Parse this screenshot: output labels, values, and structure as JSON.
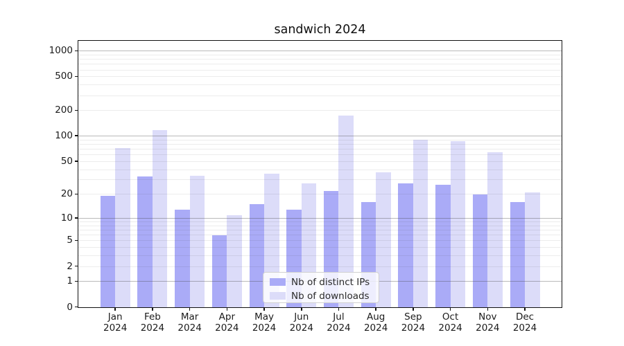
{
  "chart_data": {
    "type": "bar",
    "title": "sandwich 2024",
    "categories": [
      "Jan",
      "Feb",
      "Mar",
      "Apr",
      "May",
      "Jun",
      "Jul",
      "Aug",
      "Sep",
      "Oct",
      "Nov",
      "Dec"
    ],
    "category_year": "2024",
    "series": [
      {
        "name": "Nb of distinct IPs",
        "color": "#aaabf7",
        "values": [
          19,
          33,
          13,
          6,
          15,
          13,
          22,
          16,
          27,
          26,
          20,
          16
        ]
      },
      {
        "name": "Nb of downloads",
        "color": "#dcdcf9",
        "values": [
          72,
          118,
          34,
          11,
          36,
          27,
          175,
          37,
          90,
          87,
          64,
          21
        ]
      }
    ],
    "y_axis": {
      "scale": "log1p",
      "ylim": [
        0,
        1300
      ],
      "ticks": [
        0,
        1,
        2,
        5,
        10,
        20,
        50,
        100,
        200,
        500,
        1000
      ],
      "major_gridlines": [
        1,
        10,
        100,
        1000
      ],
      "minor_gridlines": [
        2,
        3,
        4,
        5,
        6,
        7,
        8,
        9,
        20,
        30,
        40,
        50,
        60,
        70,
        80,
        90,
        200,
        300,
        400,
        500,
        600,
        700,
        800,
        900
      ]
    },
    "legend": {
      "position": "lower-center"
    },
    "grid": true
  }
}
